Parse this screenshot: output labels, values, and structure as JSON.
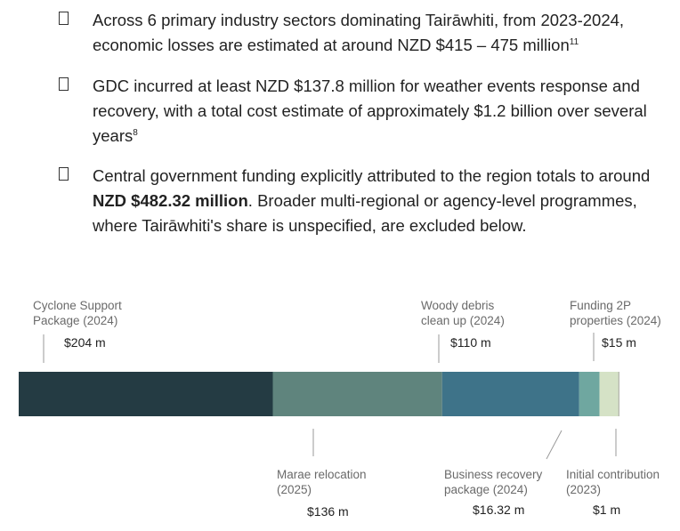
{
  "bullets": [
    {
      "pre": "Across 6 primary industry sectors dominating Tairāwhiti, from 2023-2024, economic losses are estimated at around NZD $415 – 475 million",
      "sup": "11"
    },
    {
      "pre": "GDC incurred at least NZD $137.8 million for weather events response and recovery, with a total cost estimate of approximately $1.2 billion over several years",
      "sup": "8"
    },
    {
      "pre": "Central government funding explicitly attributed to the region totals to around ",
      "bold": "NZD $482.32 million",
      "post": ". Broader multi-regional or agency-level programmes, where Tairāwhiti's share is unspecified, are excluded below."
    }
  ],
  "chart_data": {
    "type": "stacked-bar",
    "orientation": "horizontal",
    "unit": "NZD million",
    "total_label": "NZD $482.32 million",
    "segments": [
      {
        "label_line1": "Cyclone Support",
        "label_line2": "Package (2024)",
        "value": 204,
        "value_label": "$204 m",
        "color": "#243b43",
        "position": "top"
      },
      {
        "label_line1": "Marae relocation",
        "label_line2": "(2025)",
        "value": 136,
        "value_label": "$136 m",
        "color": "#5f847d",
        "position": "bottom"
      },
      {
        "label_line1": "Woody debris",
        "label_line2": "clean up (2024)",
        "value": 110,
        "value_label": "$110 m",
        "color": "#3e7389",
        "position": "top"
      },
      {
        "label_line1": "Business recovery",
        "label_line2": "package (2024)",
        "value": 16.32,
        "value_label": "$16.32 m",
        "color": "#6fa7a0",
        "position": "bottom"
      },
      {
        "label_line1": "Funding 2P",
        "label_line2": "properties (2024)",
        "value": 15,
        "value_label": "$15 m",
        "color": "#d5e2c6",
        "position": "top"
      },
      {
        "label_line1": "Initial contribution",
        "label_line2": "(2023)",
        "value": 1,
        "value_label": "$1 m",
        "color": "#b5b9ae",
        "position": "bottom"
      }
    ]
  }
}
